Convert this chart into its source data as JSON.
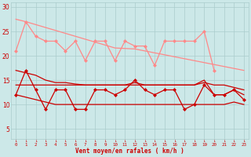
{
  "x": [
    0,
    1,
    2,
    3,
    4,
    5,
    6,
    7,
    8,
    9,
    10,
    11,
    12,
    13,
    14,
    15,
    16,
    17,
    18,
    19,
    20,
    21,
    22,
    23
  ],
  "pink_noisy": [
    21,
    27,
    24,
    23,
    23,
    21,
    23,
    19,
    23,
    23,
    19,
    23,
    22,
    22,
    18,
    23,
    23,
    23,
    23,
    25,
    17,
    null,
    null,
    null
  ],
  "pink_trend": [
    27.5,
    27,
    26.4,
    25.8,
    25.2,
    24.6,
    24.0,
    23.4,
    22.8,
    22.2,
    21.6,
    21.5,
    21.4,
    21.0,
    20.6,
    20.2,
    19.8,
    19.4,
    19.0,
    18.6,
    18.2,
    17.8,
    17.4,
    17.0
  ],
  "red_noisy": [
    12,
    17,
    13,
    9,
    13,
    13,
    9,
    9,
    13,
    13,
    12,
    13,
    15,
    13,
    12,
    13,
    13,
    9,
    10,
    14,
    12,
    12,
    13,
    11
  ],
  "red_trend_high": [
    17,
    16.5,
    16.0,
    15.0,
    14.5,
    14.5,
    14.2,
    14.0,
    14.0,
    14.0,
    14.0,
    14.0,
    14.0,
    14.0,
    14.0,
    14.0,
    14.0,
    14.0,
    14.0,
    14.5,
    14.0,
    14.0,
    13.5,
    13.0
  ],
  "red_flat_mid": [
    14,
    14,
    14,
    14,
    14,
    14,
    14,
    14,
    14,
    14,
    14,
    14,
    14.5,
    14,
    14,
    14,
    14,
    14,
    14,
    15,
    12,
    12,
    13,
    12
  ],
  "red_trend_low": [
    12,
    11.5,
    11,
    10.5,
    10,
    10,
    10,
    10,
    10,
    10,
    10,
    10,
    10,
    10,
    10,
    10,
    10,
    10,
    10,
    10,
    10,
    10,
    10.5,
    10
  ],
  "bg_color": "#cce8e8",
  "grid_color": "#aacccc",
  "pink_color": "#ff8888",
  "red_color": "#cc0000",
  "xlabel": "Vent moyen/en rafales ( km/h )",
  "ylim": [
    3,
    31
  ],
  "yticks": [
    5,
    10,
    15,
    20,
    25,
    30
  ],
  "xlim": [
    -0.5,
    23.5
  ]
}
